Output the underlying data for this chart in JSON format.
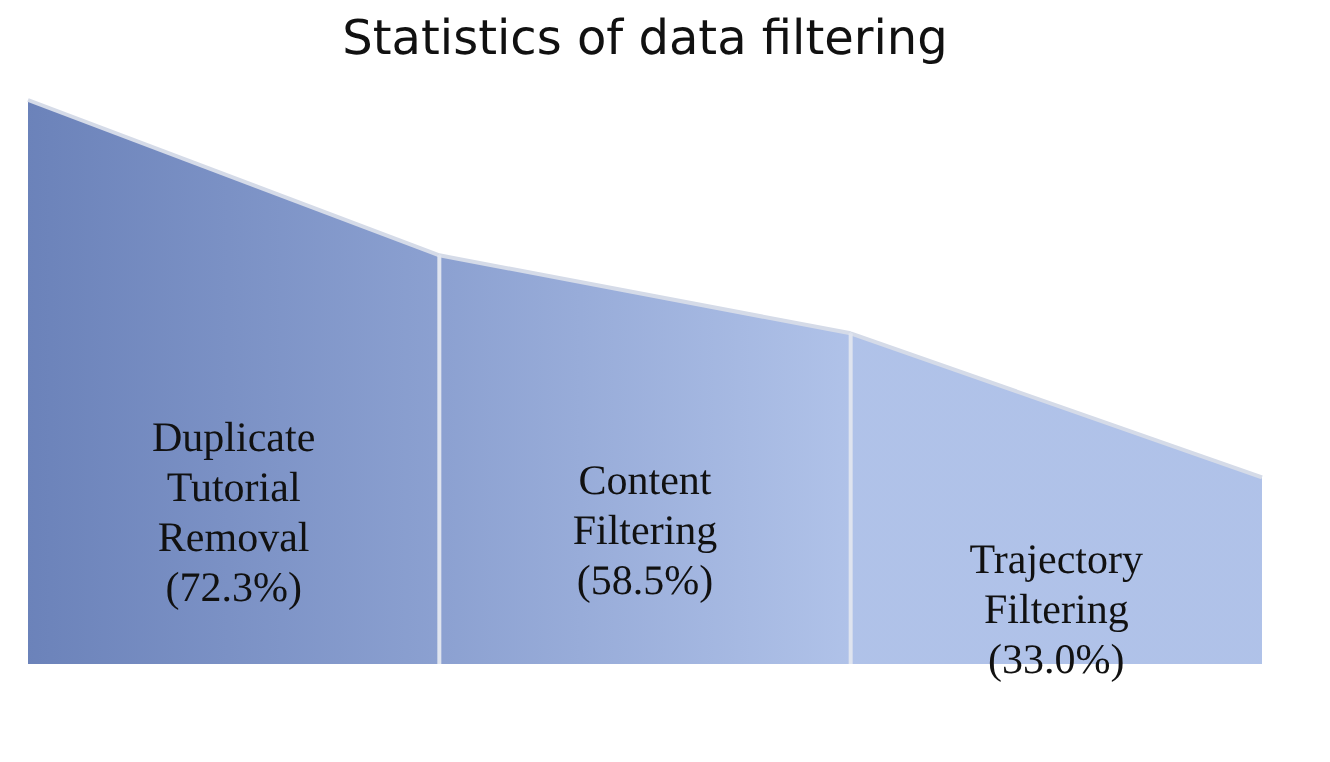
{
  "chart_data": {
    "type": "other",
    "title": "Statistics of data filtering",
    "categories": [
      "Duplicate Tutorial Removal",
      "Content Filtering",
      "Trajectory Filtering"
    ],
    "values": [
      72.3,
      58.5,
      33.0
    ],
    "value_labels": [
      "(72.3%)",
      "(58.5%)",
      "(33.0%)"
    ],
    "colors": [
      "#2c4d9c",
      "#5a78bd",
      "#8ea8df"
    ]
  }
}
